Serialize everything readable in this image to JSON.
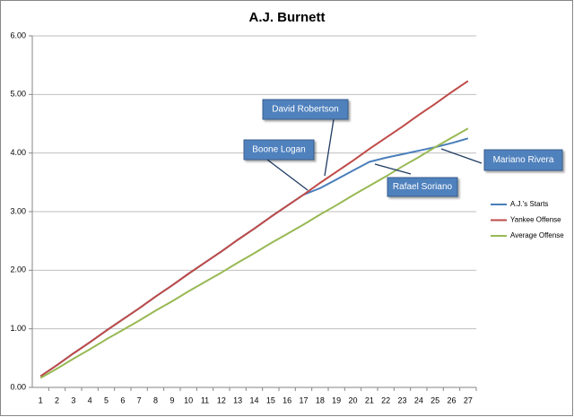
{
  "chart_data": {
    "type": "line",
    "title": "A.J. Burnett",
    "categories": [
      1,
      2,
      3,
      4,
      5,
      6,
      7,
      8,
      9,
      10,
      11,
      12,
      13,
      14,
      15,
      16,
      17,
      18,
      19,
      20,
      21,
      22,
      23,
      24,
      25,
      26,
      27
    ],
    "series": [
      {
        "name": "A.J.'s Starts",
        "color": "#4a7ebb",
        "values": [
          0.19,
          0.38,
          0.58,
          0.77,
          0.97,
          1.16,
          1.35,
          1.55,
          1.74,
          1.94,
          2.13,
          2.32,
          2.52,
          2.71,
          2.91,
          3.1,
          3.29,
          3.4,
          3.55,
          3.7,
          3.85,
          3.92,
          3.98,
          4.04,
          4.1,
          4.17,
          4.25
        ]
      },
      {
        "name": "Yankee Offense",
        "color": "#be4b48",
        "values": [
          0.19,
          0.38,
          0.58,
          0.77,
          0.97,
          1.16,
          1.35,
          1.55,
          1.74,
          1.94,
          2.13,
          2.32,
          2.52,
          2.71,
          2.91,
          3.1,
          3.29,
          3.49,
          3.68,
          3.87,
          4.07,
          4.26,
          4.45,
          4.65,
          4.84,
          5.04,
          5.23
        ]
      },
      {
        "name": "Average Offense",
        "color": "#98b954",
        "values": [
          0.16,
          0.32,
          0.49,
          0.65,
          0.82,
          0.98,
          1.14,
          1.31,
          1.47,
          1.64,
          1.8,
          1.96,
          2.13,
          2.29,
          2.46,
          2.62,
          2.78,
          2.95,
          3.11,
          3.28,
          3.44,
          3.6,
          3.77,
          3.93,
          4.1,
          4.26,
          4.42
        ]
      }
    ],
    "ylim": [
      0,
      6
    ],
    "yticks": [
      {
        "value": 0,
        "label": "0.00"
      },
      {
        "value": 1,
        "label": "1.00"
      },
      {
        "value": 2,
        "label": "2.00"
      },
      {
        "value": 3,
        "label": "3.00"
      },
      {
        "value": 4,
        "label": "4.00"
      },
      {
        "value": 5,
        "label": "5.00"
      },
      {
        "value": 6,
        "label": "6.00"
      }
    ],
    "grid": true,
    "legend": "right",
    "annotations": [
      "David Robertson",
      "Boone Logan",
      "Rafael Soriano",
      "Mariano Rivera"
    ]
  }
}
